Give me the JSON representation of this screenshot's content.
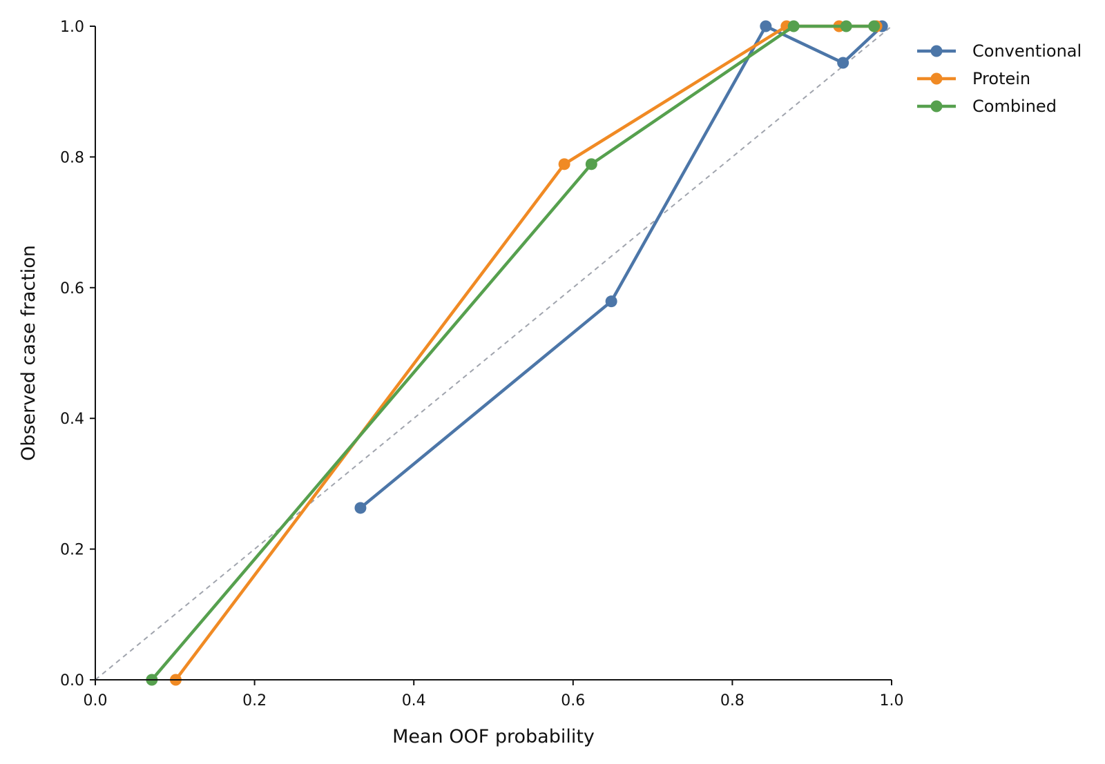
{
  "chart_data": {
    "type": "line",
    "title": "",
    "xlabel": "Mean OOF probability",
    "ylabel": "Observed case fraction",
    "xlim": [
      0.0,
      1.0
    ],
    "ylim": [
      0.0,
      1.0
    ],
    "xticks": [
      "0.0",
      "0.2",
      "0.4",
      "0.6",
      "0.8",
      "1.0"
    ],
    "yticks": [
      "0.0",
      "0.2",
      "0.4",
      "0.6",
      "0.8",
      "1.0"
    ],
    "grid": false,
    "legend_position": "top-right, outside plot",
    "reference_line": {
      "style": "dashed",
      "color": "#a0a4ad",
      "x": [
        0,
        1
      ],
      "y": [
        0,
        1
      ]
    },
    "series": [
      {
        "name": "Conventional",
        "color": "#4c76a8",
        "x": [
          0.333,
          0.648,
          0.842,
          0.939,
          0.988
        ],
        "y": [
          0.263,
          0.579,
          1.0,
          0.944,
          1.0
        ]
      },
      {
        "name": "Protein",
        "color": "#f08a24",
        "x": [
          0.101,
          0.589,
          0.868,
          0.934,
          0.981
        ],
        "y": [
          0.0,
          0.789,
          1.0,
          1.0,
          1.0
        ]
      },
      {
        "name": "Combined",
        "color": "#56a04e",
        "x": [
          0.071,
          0.623,
          0.877,
          0.943,
          0.978
        ],
        "y": [
          0.0,
          0.789,
          1.0,
          1.0,
          1.0
        ]
      }
    ]
  }
}
